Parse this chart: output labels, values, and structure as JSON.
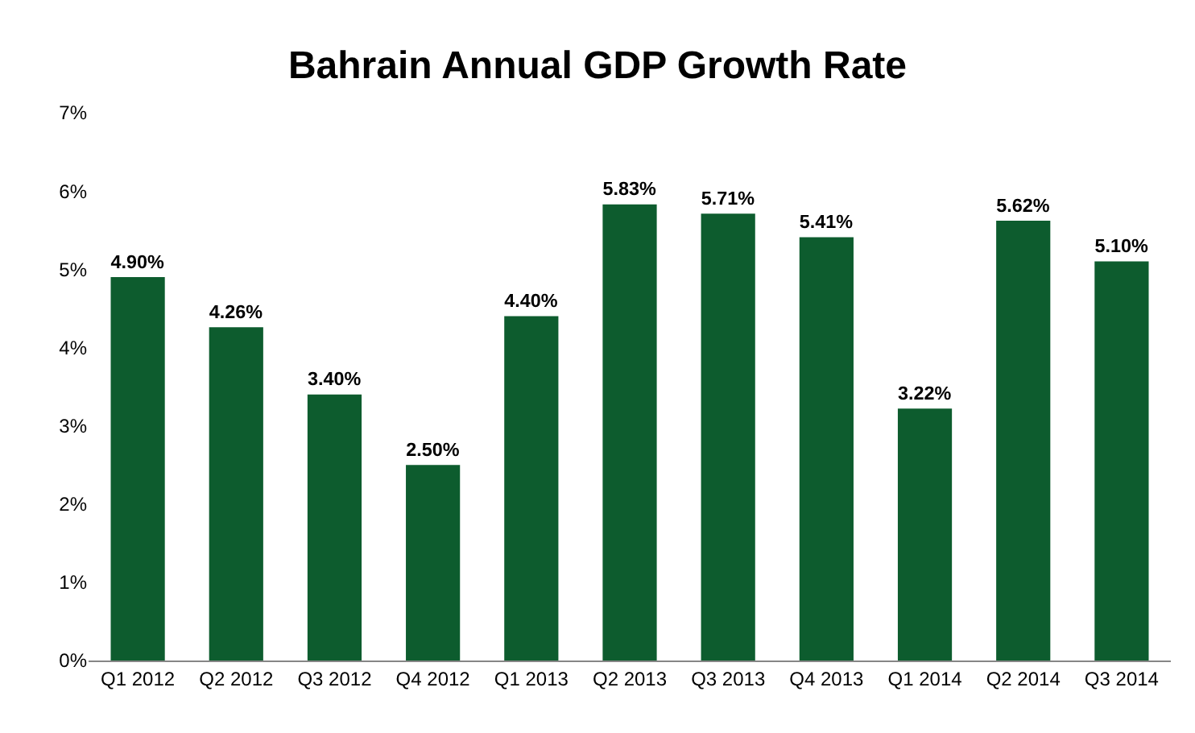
{
  "chart_data": {
    "type": "bar",
    "title": "Bahrain Annual GDP Growth Rate",
    "categories": [
      "Q1 2012",
      "Q2 2012",
      "Q3 2012",
      "Q4 2012",
      "Q1 2013",
      "Q2 2013",
      "Q3 2013",
      "Q4 2013",
      "Q1 2014",
      "Q2 2014",
      "Q3 2014"
    ],
    "values": [
      4.9,
      4.26,
      3.4,
      2.5,
      4.4,
      5.83,
      5.71,
      5.41,
      3.22,
      5.62,
      5.1
    ],
    "value_labels": [
      "4.90%",
      "4.26%",
      "3.40%",
      "2.50%",
      "4.40%",
      "5.83%",
      "5.71%",
      "5.41%",
      "3.22%",
      "5.62%",
      "5.10%"
    ],
    "color": "#0d5c2e",
    "ylim": [
      0,
      7
    ],
    "yticks": [
      {
        "value": 0,
        "label": "0%"
      },
      {
        "value": 1,
        "label": "1%"
      },
      {
        "value": 2,
        "label": "2%"
      },
      {
        "value": 3,
        "label": "3%"
      },
      {
        "value": 4,
        "label": "4%"
      },
      {
        "value": 5,
        "label": "5%"
      },
      {
        "value": 6,
        "label": "6%"
      },
      {
        "value": 7,
        "label": "7%"
      }
    ],
    "data_labels": false
  }
}
